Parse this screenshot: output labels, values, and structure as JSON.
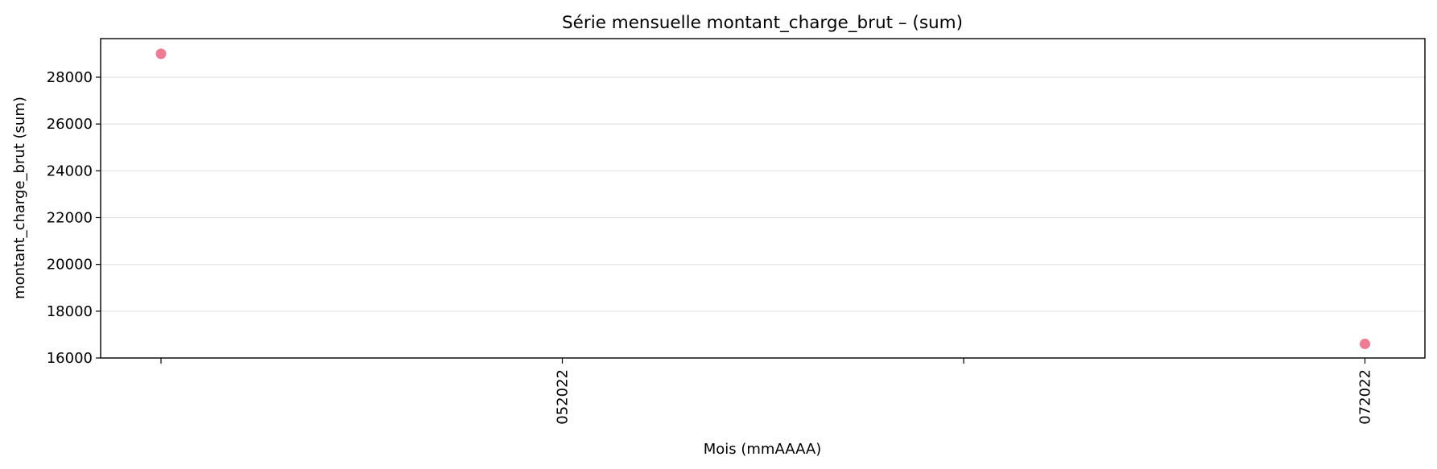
{
  "chart_data": {
    "type": "scatter",
    "title": "Série mensuelle montant_charge_brut – (sum)",
    "xlabel": "Mois (mmAAAA)",
    "ylabel": "montant_charge_brut (sum)",
    "x_ticks": [
      "",
      "052022",
      "",
      "072022"
    ],
    "y_ticks": [
      16000,
      18000,
      20000,
      22000,
      24000,
      26000,
      28000
    ],
    "ylim": [
      16000,
      29650
    ],
    "grid": "horizontal",
    "color": "#f07a93",
    "series": [
      {
        "points": [
          {
            "x": "042022",
            "y": 29000
          },
          {
            "x": "072022",
            "y": 16600
          }
        ]
      }
    ]
  }
}
